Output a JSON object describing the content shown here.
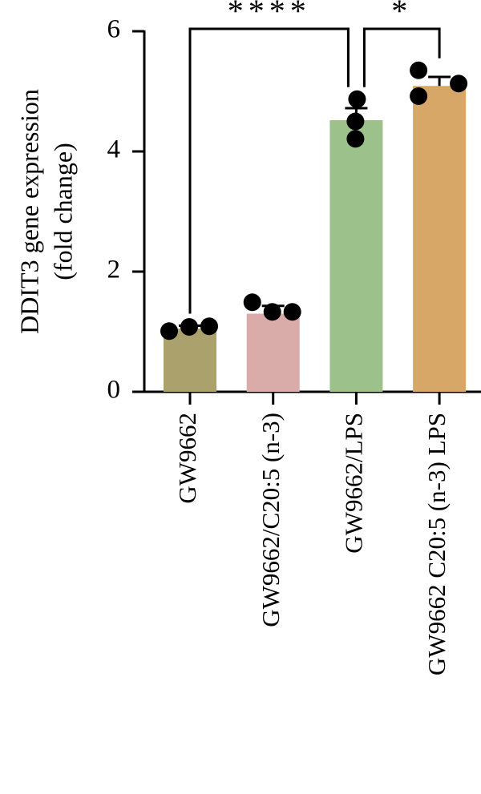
{
  "chart_data": {
    "type": "bar",
    "ylabel": [
      "DDIT3 gene expression",
      "(fold change)"
    ],
    "categories": [
      "GW9662",
      "GW9662/C20:5 (n-3)",
      "GW9662/LPS",
      "GW9662 C20:5 (n-3) LPS"
    ],
    "values": [
      1.05,
      1.3,
      4.52,
      5.09
    ],
    "errors": [
      0.05,
      0.13,
      0.2,
      0.15
    ],
    "points": [
      [
        1.01,
        1.08,
        1.09
      ],
      [
        1.49,
        1.33,
        1.33
      ],
      [
        4.87,
        4.5,
        4.21
      ],
      [
        5.35,
        5.13,
        4.92
      ]
    ],
    "colors": [
      "#aba16c",
      "#d9aba9",
      "#9dc18b",
      "#d7a767"
    ],
    "ylim": [
      0,
      6
    ],
    "yticks": [
      0,
      2,
      4,
      6
    ],
    "brackets": [
      {
        "from": 0,
        "to": 2,
        "label": "****"
      },
      {
        "from": 2,
        "to": 3,
        "label": "*"
      }
    ]
  }
}
